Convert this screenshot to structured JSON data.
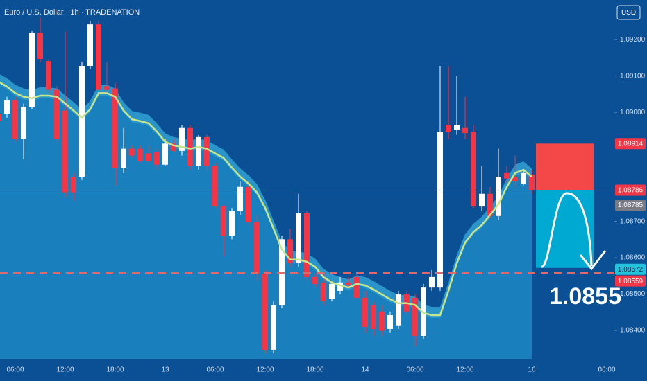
{
  "chart_data": {
    "type": "candlestick",
    "title": "Euro / U.S. Dollar · 1h · TRADENATION",
    "currency_button": "USD",
    "categories": [
      null,
      null,
      "06:00",
      null,
      null,
      null,
      null,
      null,
      "12:00",
      null,
      null,
      null,
      null,
      null,
      "18:00",
      null,
      null,
      null,
      null,
      null,
      "13",
      null,
      null,
      null,
      null,
      null,
      "06:00",
      null,
      null,
      null,
      null,
      null,
      "12:00",
      null,
      null,
      null,
      null,
      null,
      "18:00",
      null,
      null,
      null,
      null,
      null,
      "14",
      null,
      null,
      null,
      null,
      null,
      "06:00",
      null,
      null,
      null,
      null,
      null,
      "12:00",
      null,
      null,
      null,
      null,
      null,
      null,
      null,
      "16",
      null,
      null,
      null,
      null,
      null,
      null,
      null,
      null,
      "06:00"
    ],
    "open": [
      1.08996,
      1.08996,
      1.09034,
      1.08928,
      1.09015,
      1.09218,
      1.09141,
      1.09062,
      1.09005,
      1.08823,
      1.08823,
      1.09128,
      1.09242,
      1.09072,
      1.09066,
      1.08846,
      1.089,
      1.089,
      1.08887,
      1.0889,
      1.08856,
      1.08914,
      1.08894,
      1.08957,
      1.08852,
      1.08932,
      1.08852,
      1.08741,
      1.08661,
      1.08728,
      1.08795,
      1.08699,
      1.08556,
      1.08347,
      1.0847,
      1.08651,
      1.08585,
      1.08722,
      1.08547,
      1.08532,
      1.08486,
      1.08509,
      1.08532,
      1.08547,
      1.0849,
      1.0847,
      1.08452,
      1.08404,
      1.08414,
      1.08499,
      1.0849,
      1.08385,
      1.08518,
      1.08518,
      1.08966,
      1.08951,
      1.08957,
      1.08947,
      1.08741,
      1.08776,
      1.08715,
      1.08833,
      1.08823,
      1.08804,
      1.08829,
      null,
      null,
      null,
      null,
      null,
      null,
      null,
      null,
      null
    ],
    "high": [
      1.09005,
      1.09043,
      1.09043,
      1.09024,
      1.09223,
      1.09261,
      1.09147,
      1.09072,
      1.09223,
      1.08833,
      1.09138,
      1.09252,
      1.09252,
      1.09138,
      1.09081,
      1.08957,
      1.08909,
      1.08909,
      1.08909,
      1.089,
      1.08928,
      1.08928,
      1.08966,
      1.08966,
      1.08938,
      1.08938,
      1.08861,
      1.08747,
      1.08737,
      1.0881,
      1.08804,
      1.08718,
      1.08566,
      1.0848,
      1.08661,
      1.0868,
      1.08776,
      1.08728,
      1.08556,
      1.08556,
      1.08537,
      1.08547,
      1.08547,
      1.08556,
      1.08509,
      1.0848,
      1.0847,
      1.08452,
      1.08509,
      1.08509,
      1.08499,
      1.08528,
      1.08566,
      1.09128,
      1.09128,
      1.091,
      1.09043,
      1.08966,
      1.08852,
      1.08795,
      1.089,
      1.08852,
      1.08881,
      1.08842,
      1.08842,
      null,
      null,
      null,
      null,
      null,
      null,
      null,
      null,
      null
    ],
    "low": [
      1.0897,
      1.08985,
      1.08919,
      1.08871,
      1.09009,
      1.09138,
      1.09053,
      1.08919,
      1.08766,
      1.08757,
      1.08814,
      1.09119,
      1.09062,
      1.09053,
      1.08799,
      1.08833,
      1.08875,
      1.08861,
      1.08861,
      1.08842,
      1.08852,
      1.0889,
      1.08881,
      1.08842,
      1.08842,
      1.08842,
      1.08737,
      1.08604,
      1.08651,
      1.08718,
      1.0869,
      1.08537,
      1.08337,
      1.08337,
      1.08461,
      1.08575,
      1.08575,
      1.08537,
      1.08518,
      1.0847,
      1.0848,
      1.08499,
      1.08518,
      1.08486,
      1.08395,
      1.08385,
      1.08385,
      1.08395,
      1.08404,
      1.08442,
      1.08357,
      1.08376,
      1.08509,
      1.08509,
      1.08928,
      1.08938,
      1.08928,
      1.08737,
      1.08728,
      1.08709,
      1.08703,
      1.08804,
      1.08795,
      1.08799,
      1.08776,
      null,
      null,
      null,
      null,
      null,
      null,
      null,
      null,
      null
    ],
    "close": [
      1.08976,
      1.09034,
      1.08928,
      1.09015,
      1.09218,
      1.09147,
      1.09062,
      1.08928,
      1.0878,
      1.0878,
      1.09128,
      1.09242,
      1.09062,
      1.09062,
      1.08846,
      1.089,
      1.08881,
      1.08867,
      1.08867,
      1.08856,
      1.08914,
      1.08894,
      1.08957,
      1.08852,
      1.08932,
      1.08852,
      1.08741,
      1.08661,
      1.08728,
      1.08795,
      1.08699,
      1.08556,
      1.08347,
      1.0847,
      1.08651,
      1.08585,
      1.08722,
      1.08547,
      1.08528,
      1.0848,
      1.08528,
      1.08532,
      1.08524,
      1.0849,
      1.0841,
      1.08404,
      1.08399,
      1.08442,
      1.08499,
      1.08452,
      1.08385,
      1.08518,
      1.08547,
      1.08947,
      1.08947,
      1.08966,
      1.08943,
      1.08741,
      1.08776,
      1.08715,
      1.08823,
      1.08818,
      1.0881,
      1.08833,
      1.08786,
      null,
      null,
      null,
      null,
      null,
      null,
      null,
      null,
      null
    ],
    "up_color": "#ffffff",
    "down_color": "#f23645",
    "line": {
      "color": "#c9e58c",
      "values": [
        1.09084,
        1.09071,
        1.09053,
        1.09043,
        1.09039,
        1.09046,
        1.09046,
        1.09043,
        1.09024,
        1.09005,
        1.08985,
        1.09009,
        1.09053,
        1.09053,
        1.09043,
        1.09005,
        1.08981,
        1.08976,
        1.0897,
        1.08947,
        1.08919,
        1.08909,
        1.08905,
        1.089,
        1.08905,
        1.089,
        1.08887,
        1.08875,
        1.08848,
        1.08823,
        1.08804,
        1.0878,
        1.08737,
        1.0868,
        1.08623,
        1.08595,
        1.08595,
        1.08589,
        1.08575,
        1.08547,
        1.08532,
        1.08524,
        1.08518,
        1.08528,
        1.08524,
        1.08513,
        1.08499,
        1.08486,
        1.08475,
        1.08475,
        1.0847,
        1.08448,
        1.08442,
        1.08442,
        1.08509,
        1.08585,
        1.08642,
        1.08671,
        1.0869,
        1.08718,
        1.08747,
        1.08795,
        1.08833,
        1.08842,
        1.08823,
        null,
        null,
        null,
        null,
        null,
        null,
        null,
        null,
        null
      ]
    },
    "ylim": [
      1.08322,
      1.09309
    ],
    "yticks": [
      {
        "value": 1.084,
        "label": "1.08400"
      },
      {
        "value": 1.085,
        "label": "1.08500"
      },
      {
        "value": 1.086,
        "label": "1.08600"
      },
      {
        "value": 1.087,
        "label": "1.08700"
      },
      {
        "value": 1.09,
        "label": "1.09000"
      },
      {
        "value": 1.091,
        "label": "1.09100"
      },
      {
        "value": 1.092,
        "label": "1.09200"
      }
    ],
    "price_tags": [
      {
        "value": 1.08914,
        "color": "#f23645"
      },
      {
        "value": 1.08786,
        "color": "#f23645"
      },
      {
        "value": 1.08785,
        "color": "#787b86"
      },
      {
        "value": 1.08572,
        "color": "#22c3dd"
      },
      {
        "value": 1.08559,
        "color": "#f23645"
      }
    ],
    "target_label": "1.0855"
  }
}
